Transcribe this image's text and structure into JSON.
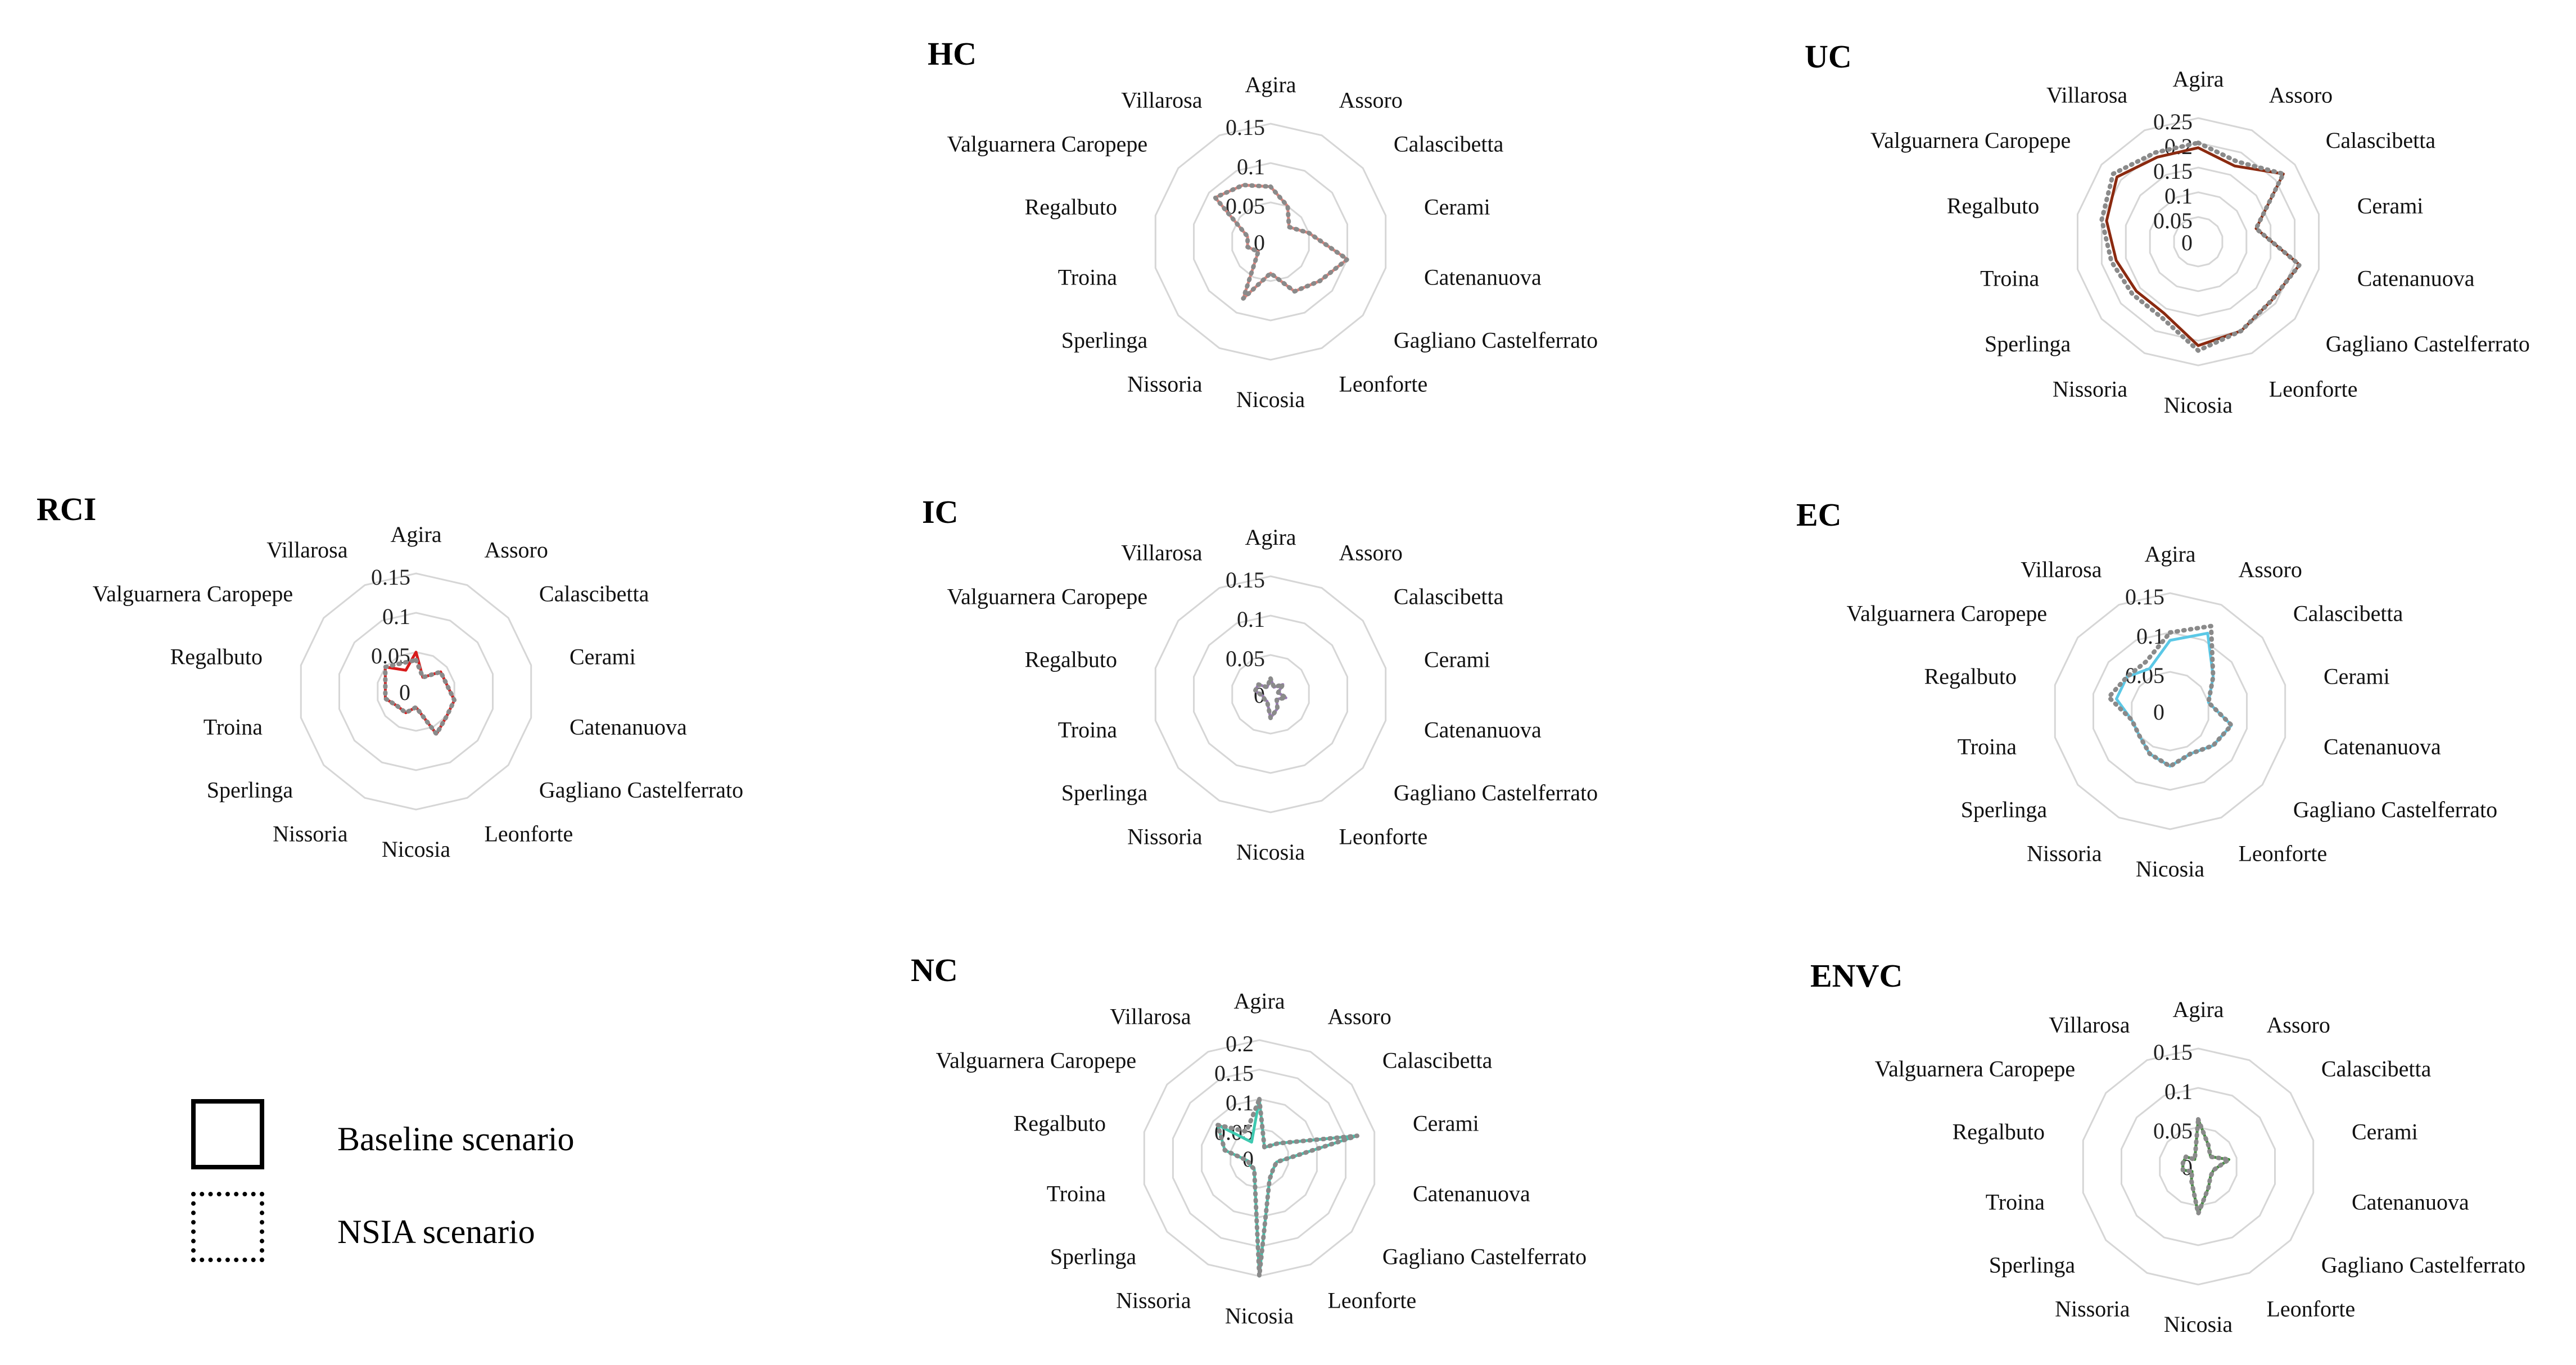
{
  "legend": {
    "baseline_label": "Baseline scenario",
    "nsia_label": "NSIA scenario"
  },
  "chart_data": [
    {
      "type": "radar",
      "title": "HC",
      "categories": [
        "Agira",
        "Assoro",
        "Calascibetta",
        "Cerami",
        "Catenanuova",
        "Gagliano Castelferrato",
        "Leonforte",
        "Nicosia",
        "Nissoria",
        "Sperlinga",
        "Troina",
        "Regalbuto",
        "Valguarnera Caropepe",
        "Villarosa"
      ],
      "ticks": [
        "0",
        "0.05",
        "0.1",
        "0.15"
      ],
      "rmax": 0.15,
      "series": [
        {
          "name": "Baseline scenario",
          "color": "#e0827a",
          "dash": "solid",
          "values": [
            0.07,
            0.05,
            0.03,
            0.05,
            0.1,
            0.08,
            0.07,
            0.04,
            0.08,
            0.02,
            0.03,
            0.03,
            0.09,
            0.08
          ]
        },
        {
          "name": "NSIA scenario",
          "color": "#8a8a8a",
          "dash": "dotted",
          "values": [
            0.07,
            0.05,
            0.03,
            0.05,
            0.1,
            0.08,
            0.07,
            0.04,
            0.08,
            0.02,
            0.03,
            0.03,
            0.09,
            0.08
          ]
        }
      ]
    },
    {
      "type": "radar",
      "title": "UC",
      "categories": [
        "Agira",
        "Assoro",
        "Calascibetta",
        "Cerami",
        "Catenanuova",
        "Gagliano Castelferrato",
        "Leonforte",
        "Nicosia",
        "Nissoria",
        "Sperlinga",
        "Troina",
        "Regalbuto",
        "Valguarnera Caropepe",
        "Villarosa"
      ],
      "ticks": [
        "0",
        "0.05",
        "0.1",
        "0.15",
        "0.2",
        "0.25"
      ],
      "rmax": 0.25,
      "series": [
        {
          "name": "Baseline scenario",
          "color": "#8b2a10",
          "dash": "solid",
          "values": [
            0.19,
            0.17,
            0.22,
            0.12,
            0.21,
            0.19,
            0.2,
            0.21,
            0.16,
            0.16,
            0.17,
            0.19,
            0.21,
            0.19
          ]
        },
        {
          "name": "NSIA scenario",
          "color": "#8a8a8a",
          "dash": "dotted",
          "values": [
            0.2,
            0.18,
            0.22,
            0.12,
            0.21,
            0.19,
            0.2,
            0.22,
            0.17,
            0.17,
            0.18,
            0.2,
            0.22,
            0.2
          ]
        }
      ]
    },
    {
      "type": "radar",
      "title": "RCI",
      "categories": [
        "Agira",
        "Assoro",
        "Calascibetta",
        "Cerami",
        "Catenanuova",
        "Gagliano Castelferrato",
        "Leonforte",
        "Nicosia",
        "Nissoria",
        "Sperlinga",
        "Troina",
        "Regalbuto",
        "Valguarnera Caropepe",
        "Villarosa"
      ],
      "ticks": [
        "0",
        "0.05",
        "0.1",
        "0.15"
      ],
      "rmax": 0.15,
      "series": [
        {
          "name": "Baseline scenario",
          "color": "#d81b1b",
          "dash": "solid",
          "values": [
            0.05,
            0.02,
            0.04,
            0.04,
            0.05,
            0.05,
            0.06,
            0.02,
            0.03,
            0.03,
            0.04,
            0.04,
            0.05,
            0.03
          ]
        },
        {
          "name": "NSIA scenario",
          "color": "#8a8a8a",
          "dash": "dotted",
          "values": [
            0.04,
            0.02,
            0.04,
            0.04,
            0.05,
            0.05,
            0.06,
            0.02,
            0.03,
            0.03,
            0.04,
            0.04,
            0.05,
            0.04
          ]
        }
      ]
    },
    {
      "type": "radar",
      "title": "IC",
      "categories": [
        "Agira",
        "Assoro",
        "Calascibetta",
        "Cerami",
        "Catenanuova",
        "Gagliano Castelferrato",
        "Leonforte",
        "Nicosia",
        "Nissoria",
        "Sperlinga",
        "Troina",
        "Regalbuto",
        "Valguarnera Caropepe",
        "Villarosa"
      ],
      "ticks": [
        "0",
        "0.05",
        "0.1",
        "0.15"
      ],
      "rmax": 0.15,
      "series": [
        {
          "name": "Baseline scenario",
          "color": "#9b7ab8",
          "dash": "solid",
          "values": [
            0.02,
            0.01,
            0.02,
            0.01,
            0.02,
            0.01,
            0.02,
            0.03,
            0.01,
            0.01,
            0.01,
            0.02,
            0.02,
            0.01
          ]
        },
        {
          "name": "NSIA scenario",
          "color": "#8a8a8a",
          "dash": "dotted",
          "values": [
            0.02,
            0.01,
            0.02,
            0.01,
            0.02,
            0.01,
            0.02,
            0.03,
            0.01,
            0.01,
            0.01,
            0.02,
            0.02,
            0.01
          ]
        }
      ]
    },
    {
      "type": "radar",
      "title": "EC",
      "categories": [
        "Agira",
        "Assoro",
        "Calascibetta",
        "Cerami",
        "Catenanuova",
        "Gagliano Castelferrato",
        "Leonforte",
        "Nicosia",
        "Nissoria",
        "Sperlinga",
        "Troina",
        "Regalbuto",
        "Valguarnera Caropepe",
        "Villarosa"
      ],
      "ticks": [
        "0",
        "0.05",
        "0.1",
        "0.15"
      ],
      "rmax": 0.15,
      "series": [
        {
          "name": "Baseline scenario",
          "color": "#5bc8e6",
          "dash": "solid",
          "values": [
            0.09,
            0.11,
            0.07,
            0.05,
            0.08,
            0.07,
            0.06,
            0.07,
            0.06,
            0.05,
            0.05,
            0.07,
            0.07,
            0.06
          ]
        },
        {
          "name": "NSIA scenario",
          "color": "#8a8a8a",
          "dash": "dotted",
          "values": [
            0.1,
            0.12,
            0.07,
            0.05,
            0.08,
            0.07,
            0.06,
            0.07,
            0.06,
            0.05,
            0.05,
            0.08,
            0.07,
            0.07
          ]
        }
      ]
    },
    {
      "type": "radar",
      "title": "NC",
      "categories": [
        "Agira",
        "Assoro",
        "Calascibetta",
        "Cerami",
        "Catenanuova",
        "Gagliano Castelferrato",
        "Leonforte",
        "Nicosia",
        "Nissoria",
        "Sperlinga",
        "Troina",
        "Regalbuto",
        "Valguarnera Caropepe",
        "Villarosa"
      ],
      "ticks": [
        "0",
        "0.05",
        "0.1",
        "0.15",
        "0.2"
      ],
      "rmax": 0.2,
      "series": [
        {
          "name": "Baseline scenario",
          "color": "#3ec9b0",
          "dash": "solid",
          "values": [
            0.1,
            0.02,
            0.04,
            0.17,
            0.03,
            0.03,
            0.04,
            0.2,
            0.02,
            0.02,
            0.02,
            0.06,
            0.09,
            0.03
          ]
        },
        {
          "name": "NSIA scenario",
          "color": "#8a8a8a",
          "dash": "dotted",
          "values": [
            0.1,
            0.02,
            0.04,
            0.17,
            0.03,
            0.03,
            0.04,
            0.2,
            0.02,
            0.02,
            0.02,
            0.06,
            0.09,
            0.05
          ]
        }
      ]
    },
    {
      "type": "radar",
      "title": "ENVC",
      "categories": [
        "Agira",
        "Assoro",
        "Calascibetta",
        "Cerami",
        "Catenanuova",
        "Gagliano Castelferrato",
        "Leonforte",
        "Nicosia",
        "Nissoria",
        "Sperlinga",
        "Troina",
        "Regalbuto",
        "Valguarnera Caropepe",
        "Villarosa"
      ],
      "ticks": [
        "0",
        "0.05",
        "0.1",
        "0.15"
      ],
      "rmax": 0.15,
      "series": [
        {
          "name": "Baseline scenario",
          "color": "#3e8e3a",
          "dash": "solid",
          "values": [
            0.06,
            0.03,
            0.02,
            0.04,
            0.02,
            0.02,
            0.03,
            0.06,
            0.02,
            0.01,
            0.02,
            0.02,
            0.02,
            0.01
          ]
        },
        {
          "name": "NSIA scenario",
          "color": "#8a8a8a",
          "dash": "dotted",
          "values": [
            0.06,
            0.03,
            0.02,
            0.04,
            0.02,
            0.02,
            0.03,
            0.06,
            0.02,
            0.01,
            0.02,
            0.02,
            0.02,
            0.01
          ]
        }
      ]
    }
  ]
}
